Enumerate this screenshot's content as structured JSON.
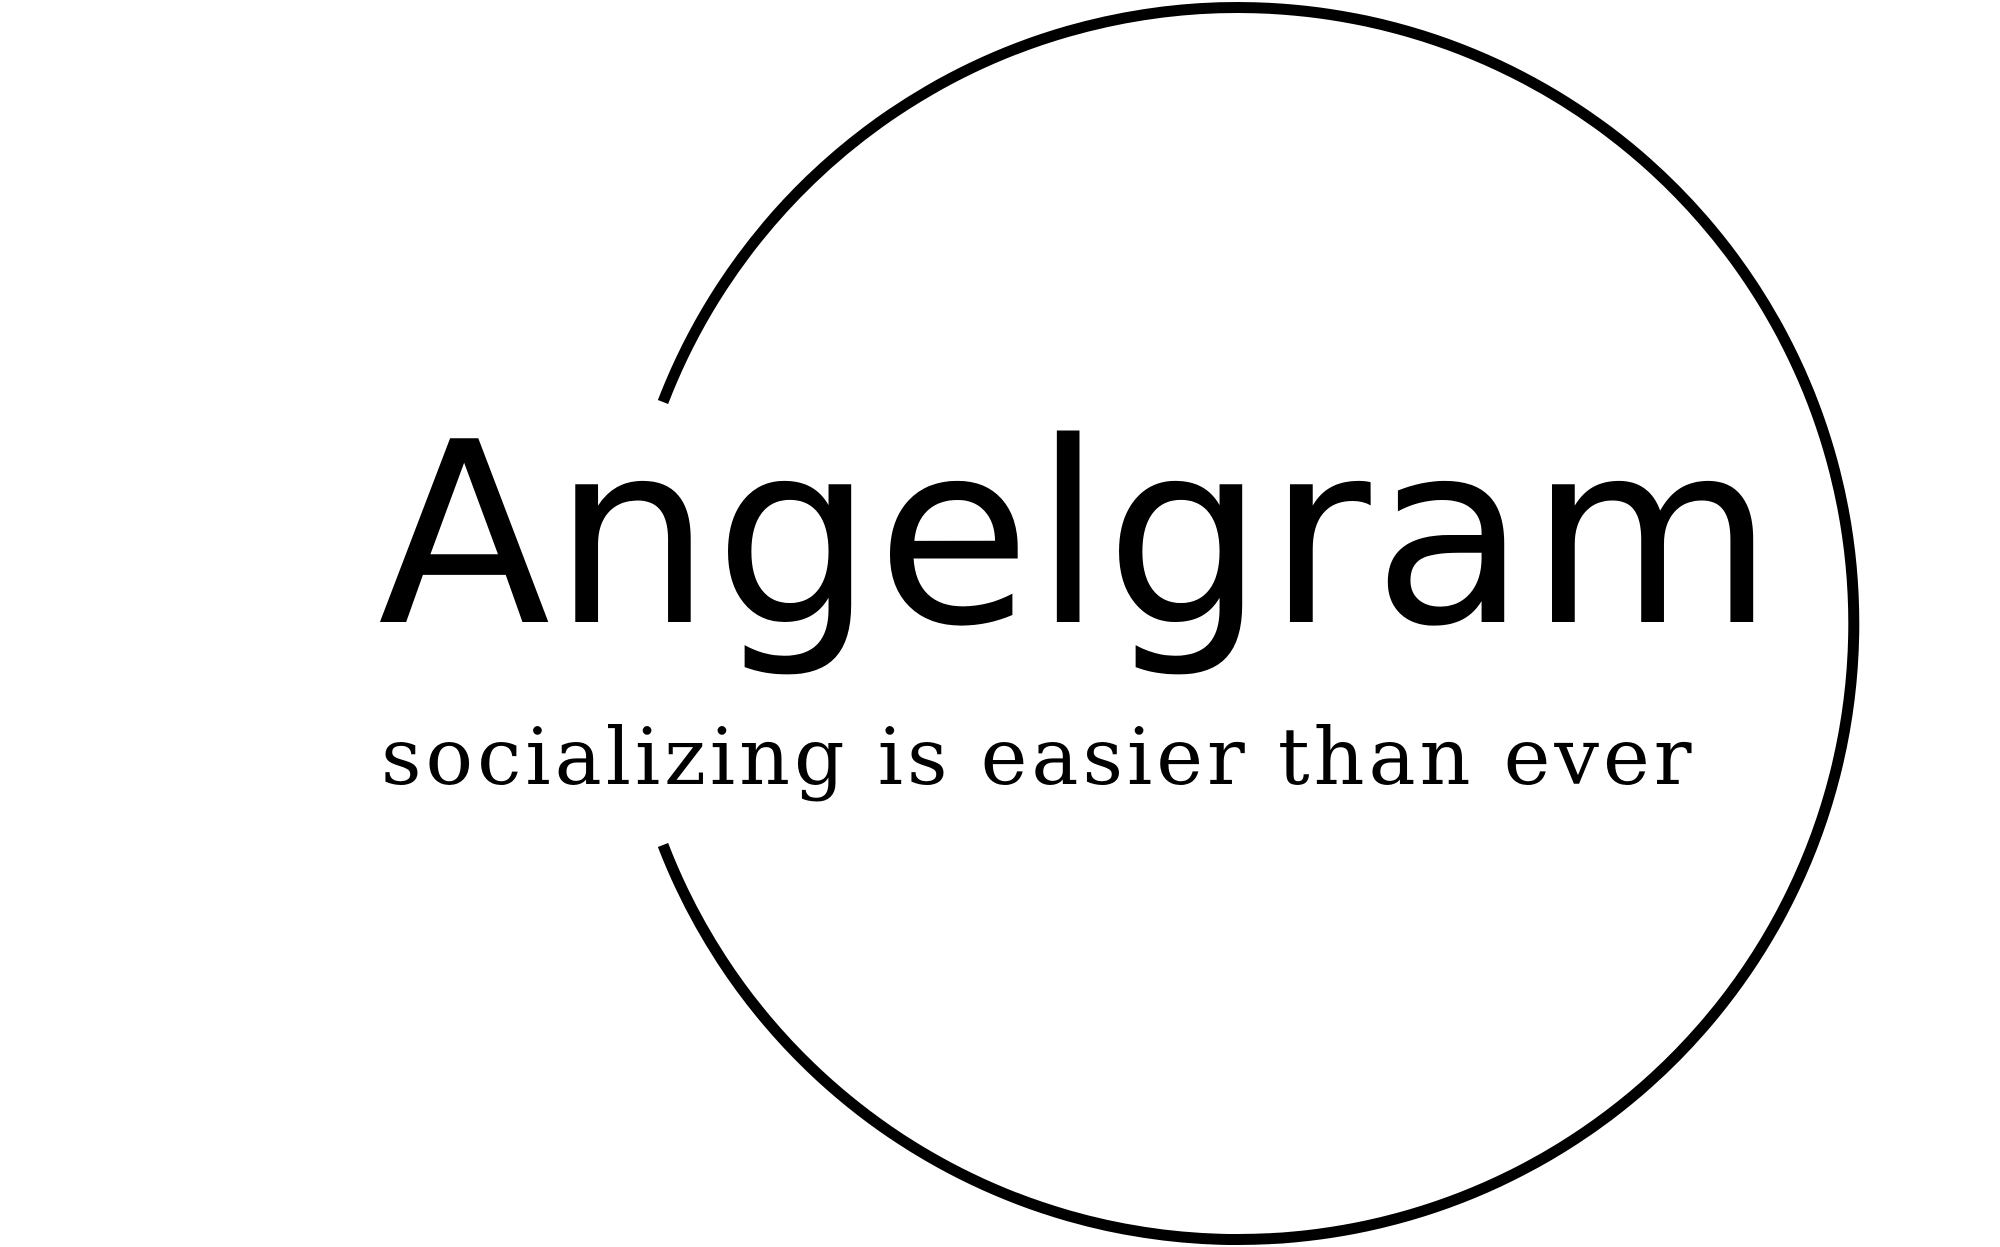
{
  "logo": {
    "name": "Angelgram",
    "tagline": "socializing is easier than ever",
    "ink_color": "#000000",
    "background_color": "#ffffff",
    "emblem": "open-ring"
  }
}
